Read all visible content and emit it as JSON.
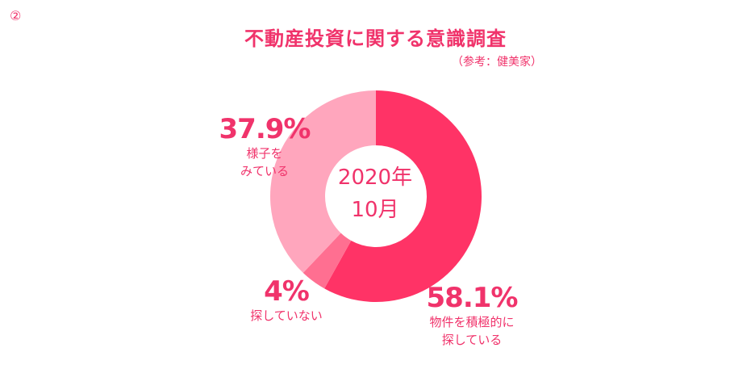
{
  "badge": "②",
  "title": "不動産投資に関する意識調査",
  "source": "（参考：健美家）",
  "chart_data": {
    "type": "pie",
    "center_label": [
      "2020年",
      "10月"
    ],
    "slices": [
      {
        "value": 58.1,
        "label": "58.1%",
        "description": "物件を積極的に\n探している",
        "color": "#ff3366"
      },
      {
        "value": 4.0,
        "label": "4%",
        "description": "探していない",
        "color": "#ff6f91"
      },
      {
        "value": 37.9,
        "label": "37.9%",
        "description": "様子を\nみている",
        "color": "#ffa6bd"
      }
    ]
  }
}
